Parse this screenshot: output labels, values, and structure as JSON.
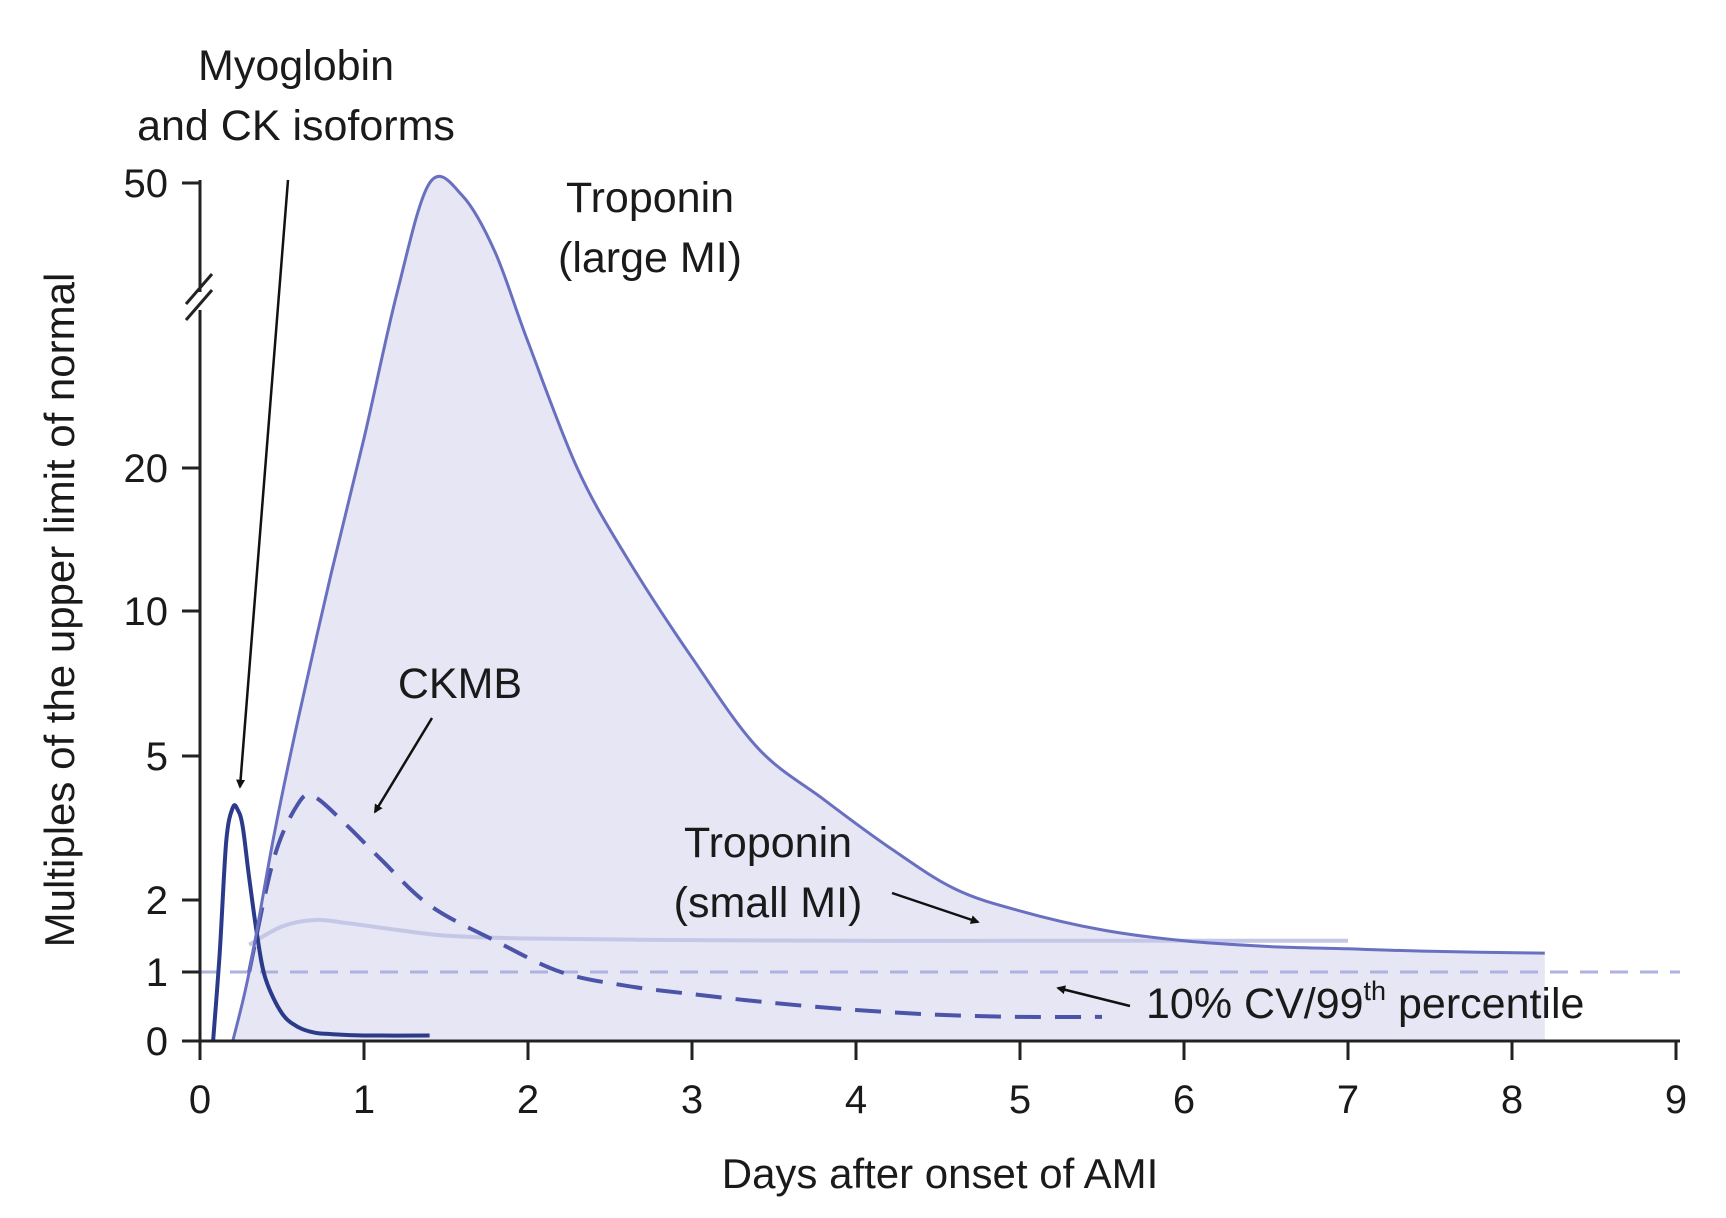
{
  "chart_data": {
    "type": "line",
    "xlabel": "Days after onset of AMI",
    "ylabel": "Multiples of the upper limit of normal",
    "xlim": [
      0,
      9
    ],
    "x_ticks": [
      "0",
      "1",
      "2",
      "3",
      "4",
      "5",
      "6",
      "7",
      "8",
      "9"
    ],
    "y_ticks": [
      "0",
      "1",
      "2",
      "5",
      "10",
      "20",
      "50"
    ],
    "y_scale": "broken, nonlinear (0, 1, 2, 5, 10, 20, break, 50)",
    "grid": false,
    "colors": {
      "troponin_large_fill": "#e6e6f5",
      "troponin_large_line": "#6a70c0",
      "troponin_small": "#c5c7e6",
      "ckmb": "#4b54a8",
      "myoglobin": "#2c3a8a",
      "reference_line": "#aeb2e0"
    },
    "series": [
      {
        "name": "Troponin (large MI)",
        "style": "solid, filled",
        "x": [
          0.2,
          0.3,
          0.45,
          0.6,
          0.8,
          1.0,
          1.2,
          1.4,
          1.6,
          1.8,
          2.0,
          2.3,
          2.6,
          3.0,
          3.4,
          3.8,
          4.2,
          4.6,
          5.0,
          5.5,
          6.0,
          6.5,
          7.0,
          7.5,
          8.2
        ],
        "y": [
          0,
          1.0,
          3.0,
          6.0,
          12,
          22,
          35,
          50,
          48,
          40,
          30,
          20,
          13,
          8,
          5.2,
          3.8,
          2.8,
          2.15,
          1.8,
          1.5,
          1.35,
          1.28,
          1.25,
          1.22,
          1.2
        ]
      },
      {
        "name": "Troponin (small MI)",
        "style": "solid, light",
        "x": [
          0.3,
          0.5,
          0.7,
          0.9,
          1.2,
          1.5,
          2.0,
          3.0,
          4.0,
          5.0,
          6.0,
          7.0
        ],
        "y": [
          1.3,
          1.55,
          1.65,
          1.6,
          1.5,
          1.42,
          1.38,
          1.36,
          1.35,
          1.35,
          1.35,
          1.35
        ]
      },
      {
        "name": "CKMB",
        "style": "dashed",
        "x": [
          0.3,
          0.45,
          0.6,
          0.7,
          0.9,
          1.1,
          1.4,
          1.8,
          2.2,
          2.6,
          3.0,
          3.5,
          4.0,
          4.5,
          5.0,
          5.5
        ],
        "y": [
          1.0,
          2.6,
          3.7,
          3.85,
          3.2,
          2.6,
          1.9,
          1.35,
          1.0,
          0.8,
          0.68,
          0.55,
          0.45,
          0.38,
          0.35,
          0.35
        ]
      },
      {
        "name": "Myoglobin and CK isoforms",
        "style": "solid, dark",
        "x": [
          0.08,
          0.12,
          0.16,
          0.2,
          0.23,
          0.26,
          0.3,
          0.35,
          0.4,
          0.5,
          0.6,
          0.7,
          0.8,
          1.0,
          1.4
        ],
        "y": [
          0,
          1.2,
          2.9,
          3.6,
          3.55,
          3.2,
          2.3,
          1.4,
          0.9,
          0.4,
          0.2,
          0.12,
          0.1,
          0.08,
          0.08
        ]
      }
    ],
    "reference_line": {
      "label": "10% CV/99",
      "label_sup": "th",
      "label_suffix": " percentile",
      "y": 1,
      "style": "dashed"
    },
    "annotations": {
      "myoglobin_line1": "Myoglobin",
      "myoglobin_line2": "and CK isoforms",
      "troponin_large_line1": "Troponin",
      "troponin_large_line2": "(large MI)",
      "ckmb": "CKMB",
      "troponin_small_line1": "Troponin",
      "troponin_small_line2": "(small MI)"
    }
  }
}
